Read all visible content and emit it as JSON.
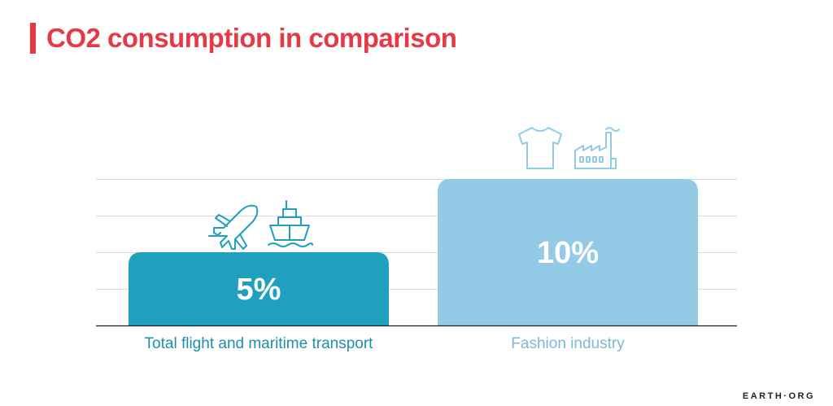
{
  "title": "CO2 consumption in comparison",
  "brand": "EARTH·ORG",
  "colors": {
    "accent": "#e63946",
    "bar_transport": "#20a0be",
    "bar_fashion": "#93cbe6",
    "label_transport": "#1e8fab",
    "label_fashion": "#7fb9d6",
    "icon_transport": "#20a0be",
    "icon_fashion": "#93cbe6",
    "grid": "#d9d9d9",
    "axis": "#222222"
  },
  "chart_data": {
    "type": "bar",
    "title": "CO2 consumption in comparison",
    "categories": [
      "Total flight and maritime transport",
      "Fashion industry"
    ],
    "values": [
      5,
      10
    ],
    "value_labels": [
      "5%",
      "10%"
    ],
    "unit": "%",
    "ylim": [
      0,
      10
    ],
    "grid": true,
    "icons": [
      [
        "airplane-icon",
        "ship-icon"
      ],
      [
        "t-shirt-icon",
        "factory-icon"
      ]
    ]
  }
}
